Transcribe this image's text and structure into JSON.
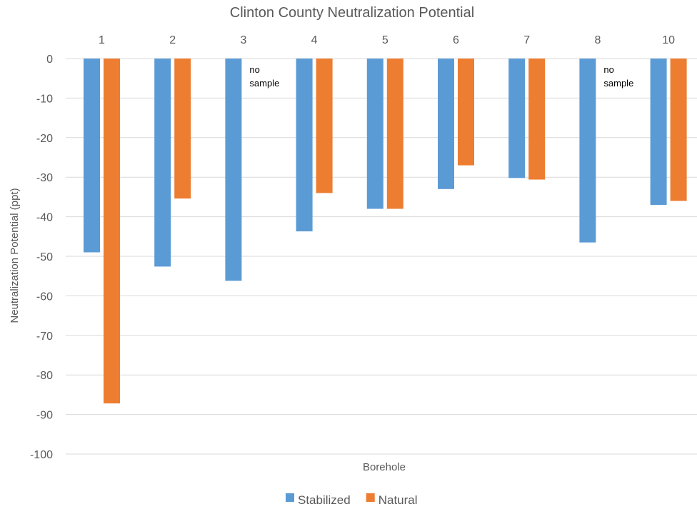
{
  "chart_data": {
    "type": "bar",
    "title": "Clinton County Neutralization Potential",
    "xlabel": "Borehole",
    "ylabel": "Neutralization Potential (ppt)",
    "categories": [
      "1",
      "2",
      "3",
      "4",
      "5",
      "6",
      "7",
      "8",
      "10"
    ],
    "ylim": [
      -100,
      0
    ],
    "yticks": [
      0,
      -10,
      -20,
      -30,
      -40,
      -50,
      -60,
      -70,
      -80,
      -90,
      -100
    ],
    "grid": true,
    "x_axis_position": "top",
    "legend_position": "bottom",
    "series": [
      {
        "name": "Stabilized",
        "color": "#5b9bd5",
        "values": [
          -49,
          -52.6,
          -56.2,
          -43.7,
          -38,
          -33,
          -30.2,
          -46.5,
          -37
        ]
      },
      {
        "name": "Natural",
        "color": "#ed7d31",
        "values": [
          -87.2,
          -35.4,
          null,
          -34,
          -38,
          -27,
          -30.6,
          null,
          -36
        ]
      }
    ],
    "annotations": [
      {
        "category": "3",
        "series": "Natural",
        "text": [
          "no",
          "sample"
        ]
      },
      {
        "category": "8",
        "series": "Natural",
        "text": [
          "no",
          "sample"
        ]
      }
    ]
  }
}
